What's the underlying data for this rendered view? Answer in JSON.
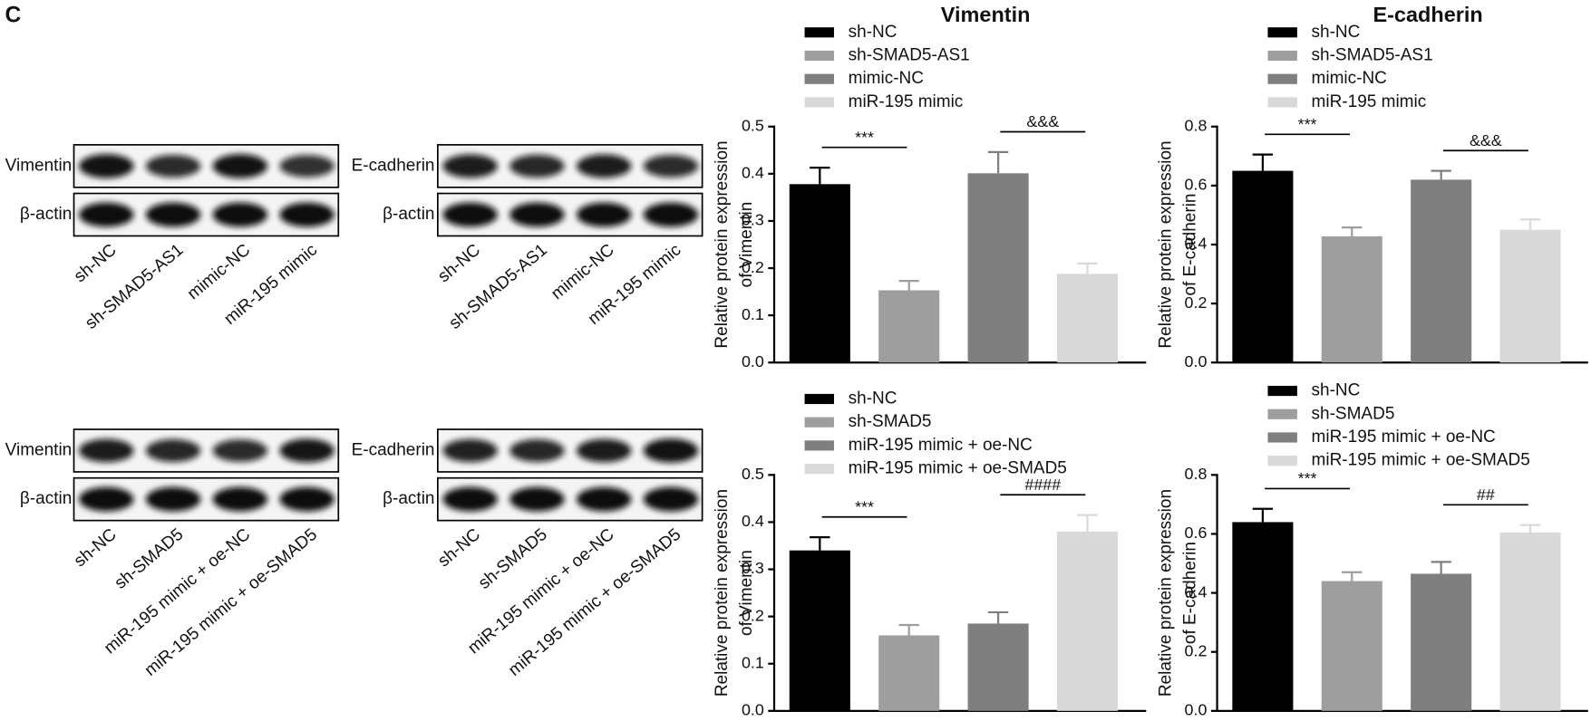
{
  "panel_label": "C",
  "blots": [
    {
      "rows": [
        "Vimentin",
        "β-actin"
      ],
      "lanes": [
        "sh-NC",
        "sh-SMAD5-AS1",
        "mimic-NC",
        "miR-195 mimic"
      ]
    },
    {
      "rows": [
        "E-cadherin",
        "β-actin"
      ],
      "lanes": [
        "sh-NC",
        "sh-SMAD5-AS1",
        "mimic-NC",
        "miR-195 mimic"
      ]
    },
    {
      "rows": [
        "Vimentin",
        "β-actin"
      ],
      "lanes": [
        "sh-NC",
        "sh-SMAD5",
        "miR-195 mimic + oe-NC",
        "miR-195 mimic + oe-SMAD5"
      ]
    },
    {
      "rows": [
        "E-cadherin",
        "β-actin"
      ],
      "lanes": [
        "sh-NC",
        "sh-SMAD5",
        "miR-195 mimic + oe-NC",
        "miR-195 mimic + oe-SMAD5"
      ]
    }
  ],
  "chart_data": [
    {
      "type": "bar",
      "title": "Vimentin",
      "y_label": [
        "Relative protein expression",
        "of Vimentin"
      ],
      "ylim": [
        0,
        0.5
      ],
      "yticks": [
        {
          "value": 0,
          "label": "0.0"
        },
        0.1,
        0.2,
        0.3,
        0.4,
        0.5
      ],
      "series": [
        {
          "name": "sh-NC",
          "color": "#000000",
          "values": [
            0.378
          ],
          "errors": [
            0.035
          ]
        },
        {
          "name": "sh-SMAD5-AS1",
          "color": "#9e9e9e",
          "values": [
            0.153
          ],
          "errors": [
            0.02
          ]
        },
        {
          "name": "mimic-NC",
          "color": "#7f7f7f",
          "values": [
            0.401
          ],
          "errors": [
            0.045
          ]
        },
        {
          "name": "miR-195 mimic",
          "color": "#d9d9d9",
          "values": [
            0.188
          ],
          "errors": [
            0.022
          ]
        }
      ],
      "annotations": [
        {
          "text": "***",
          "between": [
            0,
            1
          ]
        },
        {
          "text": "&&&",
          "between": [
            2,
            3
          ]
        }
      ]
    },
    {
      "type": "bar",
      "title": "E-cadherin",
      "y_label": [
        "Relative protein expression",
        "of E-cadherin"
      ],
      "ylim": [
        0,
        0.8
      ],
      "yticks": [
        {
          "value": 0,
          "label": "0.0"
        },
        0.2,
        0.4,
        0.6,
        0.8
      ],
      "series": [
        {
          "name": "sh-NC",
          "color": "#000000",
          "values": [
            0.65
          ],
          "errors": [
            0.055
          ]
        },
        {
          "name": "sh-SMAD5-AS1",
          "color": "#9e9e9e",
          "values": [
            0.428
          ],
          "errors": [
            0.03
          ]
        },
        {
          "name": "mimic-NC",
          "color": "#7f7f7f",
          "values": [
            0.62
          ],
          "errors": [
            0.03
          ]
        },
        {
          "name": "miR-195 mimic",
          "color": "#d9d9d9",
          "values": [
            0.45
          ],
          "errors": [
            0.035
          ]
        }
      ],
      "annotations": [
        {
          "text": "***",
          "between": [
            0,
            1
          ]
        },
        {
          "text": "&&&",
          "between": [
            2,
            3
          ]
        }
      ]
    },
    {
      "type": "bar",
      "y_label": [
        "Relative protein expression",
        "of Vimentin"
      ],
      "ylim": [
        0,
        0.5
      ],
      "yticks": [
        {
          "value": 0,
          "label": "0.0"
        },
        0.1,
        0.2,
        0.3,
        0.4,
        0.5
      ],
      "series": [
        {
          "name": "sh-NC",
          "color": "#000000",
          "values": [
            0.34
          ],
          "errors": [
            0.028
          ]
        },
        {
          "name": "sh-SMAD5",
          "color": "#9e9e9e",
          "values": [
            0.16
          ],
          "errors": [
            0.022
          ]
        },
        {
          "name": "miR-195 mimic + oe-NC",
          "color": "#7f7f7f",
          "values": [
            0.185
          ],
          "errors": [
            0.024
          ]
        },
        {
          "name": "miR-195 mimic + oe-SMAD5",
          "color": "#d9d9d9",
          "values": [
            0.38
          ],
          "errors": [
            0.035
          ]
        }
      ],
      "annotations": [
        {
          "text": "***",
          "between": [
            0,
            1
          ]
        },
        {
          "text": "####",
          "between": [
            2,
            3
          ]
        }
      ]
    },
    {
      "type": "bar",
      "y_label": [
        "Relative protein expression",
        "of E-cadherin"
      ],
      "ylim": [
        0,
        0.8
      ],
      "yticks": [
        {
          "value": 0,
          "label": "0.0"
        },
        0.2,
        0.4,
        0.6,
        0.8
      ],
      "series": [
        {
          "name": "sh-NC",
          "color": "#000000",
          "values": [
            0.64
          ],
          "errors": [
            0.045
          ]
        },
        {
          "name": "sh-SMAD5",
          "color": "#9e9e9e",
          "values": [
            0.44
          ],
          "errors": [
            0.03
          ]
        },
        {
          "name": "miR-195 mimic + oe-NC",
          "color": "#7f7f7f",
          "values": [
            0.465
          ],
          "errors": [
            0.04
          ]
        },
        {
          "name": "miR-195 mimic + oe-SMAD5",
          "color": "#d9d9d9",
          "values": [
            0.605
          ],
          "errors": [
            0.025
          ]
        }
      ],
      "annotations": [
        {
          "text": "***",
          "between": [
            0,
            1
          ]
        },
        {
          "text": "##",
          "between": [
            2,
            3
          ]
        }
      ]
    }
  ]
}
